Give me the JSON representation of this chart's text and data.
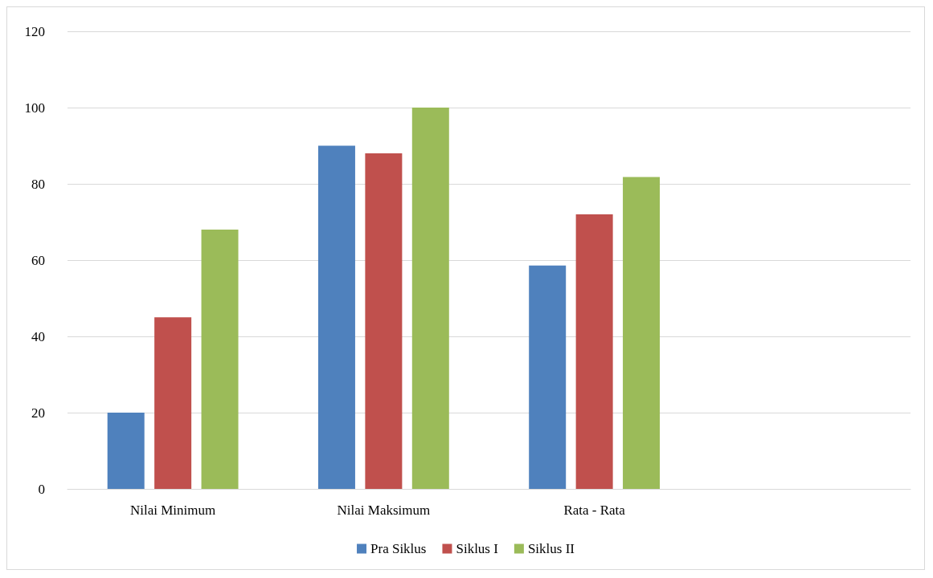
{
  "chart_data": {
    "type": "bar",
    "categories": [
      "Nilai Minimum",
      "Nilai Maksimum",
      "Rata - Rata",
      null
    ],
    "series": [
      {
        "name": "Pra Siklus",
        "color": "#4f81bd",
        "values": [
          20,
          90,
          58.6,
          null
        ]
      },
      {
        "name": "Siklus I",
        "color": "#c0504d",
        "values": [
          45,
          88,
          72,
          null
        ]
      },
      {
        "name": "Siklus II",
        "color": "#9bbb59",
        "values": [
          68,
          100,
          81.8,
          null
        ]
      }
    ],
    "ylim": [
      0,
      120
    ],
    "yticks": [
      0,
      20,
      40,
      60,
      80,
      100,
      120
    ],
    "grid": "y",
    "legend": "bottom"
  }
}
